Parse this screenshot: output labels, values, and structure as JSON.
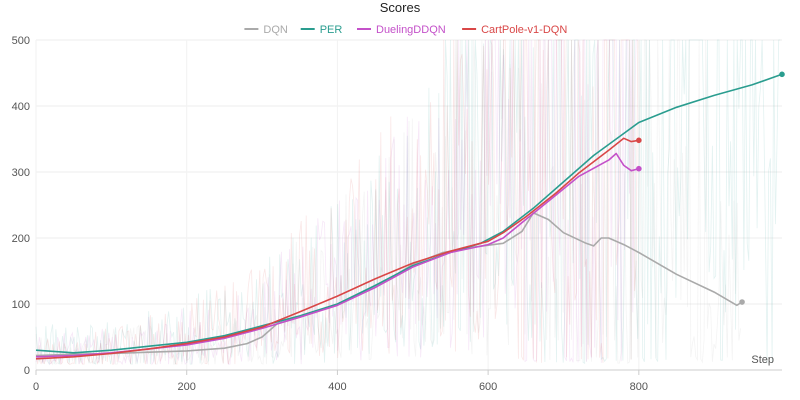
{
  "chart_data": {
    "type": "line",
    "title": "Scores",
    "xlabel": "Step",
    "ylabel": "",
    "xlim": [
      0,
      990
    ],
    "ylim": [
      0,
      500
    ],
    "x_ticks": [
      0,
      200,
      400,
      600,
      800
    ],
    "y_ticks": [
      0,
      100,
      200,
      300,
      400,
      500
    ],
    "grid": true,
    "legend": "top-center",
    "series": [
      {
        "name": "DQN",
        "color": "#aaaaaa",
        "smoothed": [
          [
            0,
            22
          ],
          [
            50,
            24
          ],
          [
            100,
            25
          ],
          [
            150,
            27
          ],
          [
            200,
            29
          ],
          [
            250,
            33
          ],
          [
            280,
            40
          ],
          [
            300,
            50
          ],
          [
            320,
            70
          ],
          [
            350,
            80
          ],
          [
            400,
            100
          ],
          [
            450,
            125
          ],
          [
            500,
            160
          ],
          [
            540,
            178
          ],
          [
            580,
            186
          ],
          [
            620,
            192
          ],
          [
            645,
            210
          ],
          [
            660,
            238
          ],
          [
            680,
            228
          ],
          [
            700,
            208
          ],
          [
            730,
            192
          ],
          [
            740,
            188
          ],
          [
            750,
            200
          ],
          [
            760,
            200
          ],
          [
            780,
            190
          ],
          [
            800,
            178
          ],
          [
            850,
            145
          ],
          [
            900,
            118
          ],
          [
            930,
            98
          ],
          [
            937,
            103
          ]
        ],
        "raw_range": [
          0,
          937
        ]
      },
      {
        "name": "PER",
        "color": "#2a9d8f",
        "smoothed": [
          [
            0,
            30
          ],
          [
            50,
            26
          ],
          [
            100,
            30
          ],
          [
            150,
            36
          ],
          [
            200,
            42
          ],
          [
            250,
            52
          ],
          [
            300,
            67
          ],
          [
            350,
            82
          ],
          [
            400,
            100
          ],
          [
            450,
            128
          ],
          [
            500,
            158
          ],
          [
            550,
            178
          ],
          [
            590,
            192
          ],
          [
            620,
            210
          ],
          [
            660,
            245
          ],
          [
            700,
            285
          ],
          [
            740,
            325
          ],
          [
            770,
            350
          ],
          [
            800,
            375
          ],
          [
            850,
            398
          ],
          [
            900,
            416
          ],
          [
            950,
            432
          ],
          [
            990,
            448
          ]
        ],
        "raw_range": [
          0,
          990
        ]
      },
      {
        "name": "DuelingDDQN",
        "color": "#c451c9",
        "smoothed": [
          [
            0,
            20
          ],
          [
            50,
            22
          ],
          [
            100,
            26
          ],
          [
            150,
            32
          ],
          [
            200,
            38
          ],
          [
            250,
            48
          ],
          [
            300,
            63
          ],
          [
            350,
            80
          ],
          [
            400,
            98
          ],
          [
            450,
            125
          ],
          [
            500,
            156
          ],
          [
            550,
            178
          ],
          [
            600,
            190
          ],
          [
            620,
            200
          ],
          [
            650,
            228
          ],
          [
            690,
            265
          ],
          [
            720,
            293
          ],
          [
            760,
            318
          ],
          [
            770,
            328
          ],
          [
            780,
            310
          ],
          [
            790,
            302
          ],
          [
            800,
            305
          ]
        ],
        "raw_range": [
          0,
          800
        ]
      },
      {
        "name": "CartPole-v1-DQN",
        "color": "#d94747",
        "smoothed": [
          [
            0,
            17
          ],
          [
            50,
            20
          ],
          [
            100,
            25
          ],
          [
            150,
            32
          ],
          [
            200,
            40
          ],
          [
            250,
            50
          ],
          [
            300,
            65
          ],
          [
            350,
            88
          ],
          [
            400,
            112
          ],
          [
            450,
            138
          ],
          [
            500,
            162
          ],
          [
            550,
            180
          ],
          [
            600,
            195
          ],
          [
            620,
            208
          ],
          [
            650,
            232
          ],
          [
            690,
            268
          ],
          [
            720,
            298
          ],
          [
            760,
            333
          ],
          [
            780,
            351
          ],
          [
            790,
            346
          ],
          [
            800,
            348
          ]
        ],
        "raw_range": [
          0,
          800
        ]
      }
    ]
  }
}
